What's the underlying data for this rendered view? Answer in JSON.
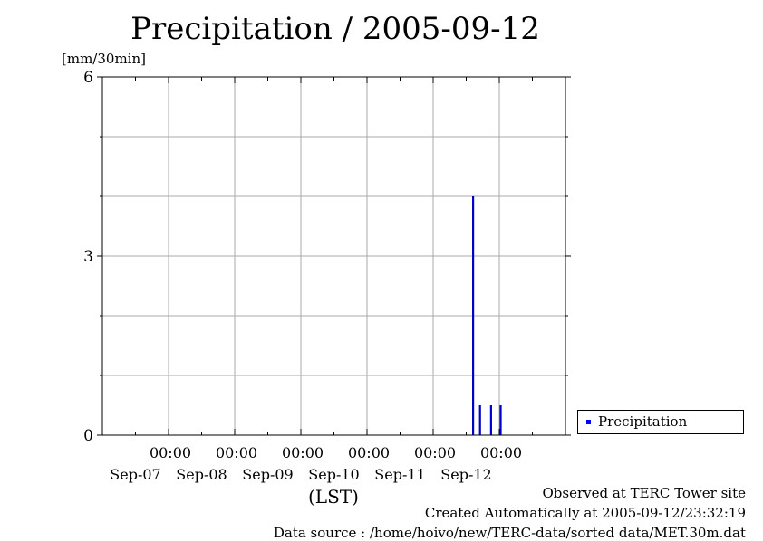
{
  "chart_data": {
    "type": "bar",
    "title": "Precipitation / 2005-09-12",
    "ylabel": "[mm/30min]",
    "xlabel": "(LST)",
    "ylim": [
      0,
      6
    ],
    "yticks": [
      "0",
      "3",
      "6"
    ],
    "x_axis_ticks": [
      {
        "time": "00:00",
        "date": "Sep-07"
      },
      {
        "time": "00:00",
        "date": "Sep-08"
      },
      {
        "time": "00:00",
        "date": "Sep-09"
      },
      {
        "time": "00:00",
        "date": "Sep-10"
      },
      {
        "time": "00:00",
        "date": "Sep-11"
      },
      {
        "time": "00:00",
        "date": "Sep-12"
      }
    ],
    "xlim": [
      "2005-09-06 00:00",
      "2005-09-13 00:00"
    ],
    "grid": true,
    "legend_position": "right, bottom",
    "series": [
      {
        "name": "Precipitation",
        "color": "#0000cc",
        "points": [
          {
            "x": "2005-09-11 14:30",
            "y": 4.0
          },
          {
            "x": "2005-09-11 17:00",
            "y": 0.5
          },
          {
            "x": "2005-09-11 21:00",
            "y": 0.5
          },
          {
            "x": "2005-09-12 00:30",
            "y": 0.5
          }
        ]
      }
    ]
  },
  "legend": {
    "label": "Precipitation",
    "swatch_color": "#0000ff"
  },
  "footer": {
    "line1": "Observed at TERC Tower site",
    "line2": "Created Automatically at 2005-09-12/23:32:19",
    "line3": "Data source : /home/hoivo/new/TERC-data/sorted data/MET.30m.dat"
  }
}
